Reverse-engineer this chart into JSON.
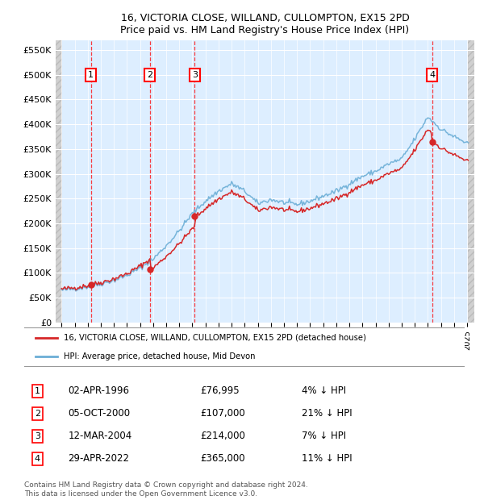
{
  "title": "16, VICTORIA CLOSE, WILLAND, CULLOMPTON, EX15 2PD",
  "subtitle": "Price paid vs. HM Land Registry's House Price Index (HPI)",
  "hpi_label": "HPI: Average price, detached house, Mid Devon",
  "property_label": "16, VICTORIA CLOSE, WILLAND, CULLOMPTON, EX15 2PD (detached house)",
  "copyright": "Contains HM Land Registry data © Crown copyright and database right 2024.\nThis data is licensed under the Open Government Licence v3.0.",
  "sale_prices": [
    76995,
    107000,
    214000,
    365000
  ],
  "sale_labels": [
    "02-APR-1996",
    "05-OCT-2000",
    "12-MAR-2004",
    "29-APR-2022"
  ],
  "sale_pct": [
    "4% ↓ HPI",
    "21% ↓ HPI",
    "7% ↓ HPI",
    "11% ↓ HPI"
  ],
  "sale_price_labels": [
    "£76,995",
    "£107,000",
    "£214,000",
    "£365,000"
  ],
  "ylim": [
    0,
    570000
  ],
  "yticks": [
    0,
    50000,
    100000,
    150000,
    200000,
    250000,
    300000,
    350000,
    400000,
    450000,
    500000,
    550000
  ],
  "ytick_labels": [
    "£0",
    "£50K",
    "£100K",
    "£150K",
    "£200K",
    "£250K",
    "£300K",
    "£350K",
    "£400K",
    "£450K",
    "£500K",
    "£550K"
  ],
  "hpi_color": "#6baed6",
  "price_color": "#d62728",
  "bg_chart": "#ddeeff",
  "grid_color": "#ffffff",
  "hpi_key_years": [
    1994,
    1995,
    1996,
    1997,
    1998,
    1999,
    2000,
    2001,
    2002,
    2003,
    2004,
    2005,
    2006,
    2007,
    2008,
    2009,
    2010,
    2011,
    2012,
    2013,
    2014,
    2015,
    2016,
    2017,
    2018,
    2019,
    2020,
    2021,
    2022,
    2023,
    2024,
    2025.1
  ],
  "hpi_key_vals": [
    65000,
    68000,
    72000,
    78000,
    85000,
    95000,
    110000,
    128000,
    155000,
    185000,
    220000,
    245000,
    265000,
    280000,
    265000,
    240000,
    248000,
    242000,
    238000,
    245000,
    255000,
    265000,
    280000,
    295000,
    305000,
    320000,
    330000,
    370000,
    415000,
    390000,
    375000,
    360000
  ],
  "sale_year_vals": [
    1996.25,
    2000.75,
    2004.17,
    2022.33
  ],
  "xstart": 1994.0,
  "xend": 2025.1
}
